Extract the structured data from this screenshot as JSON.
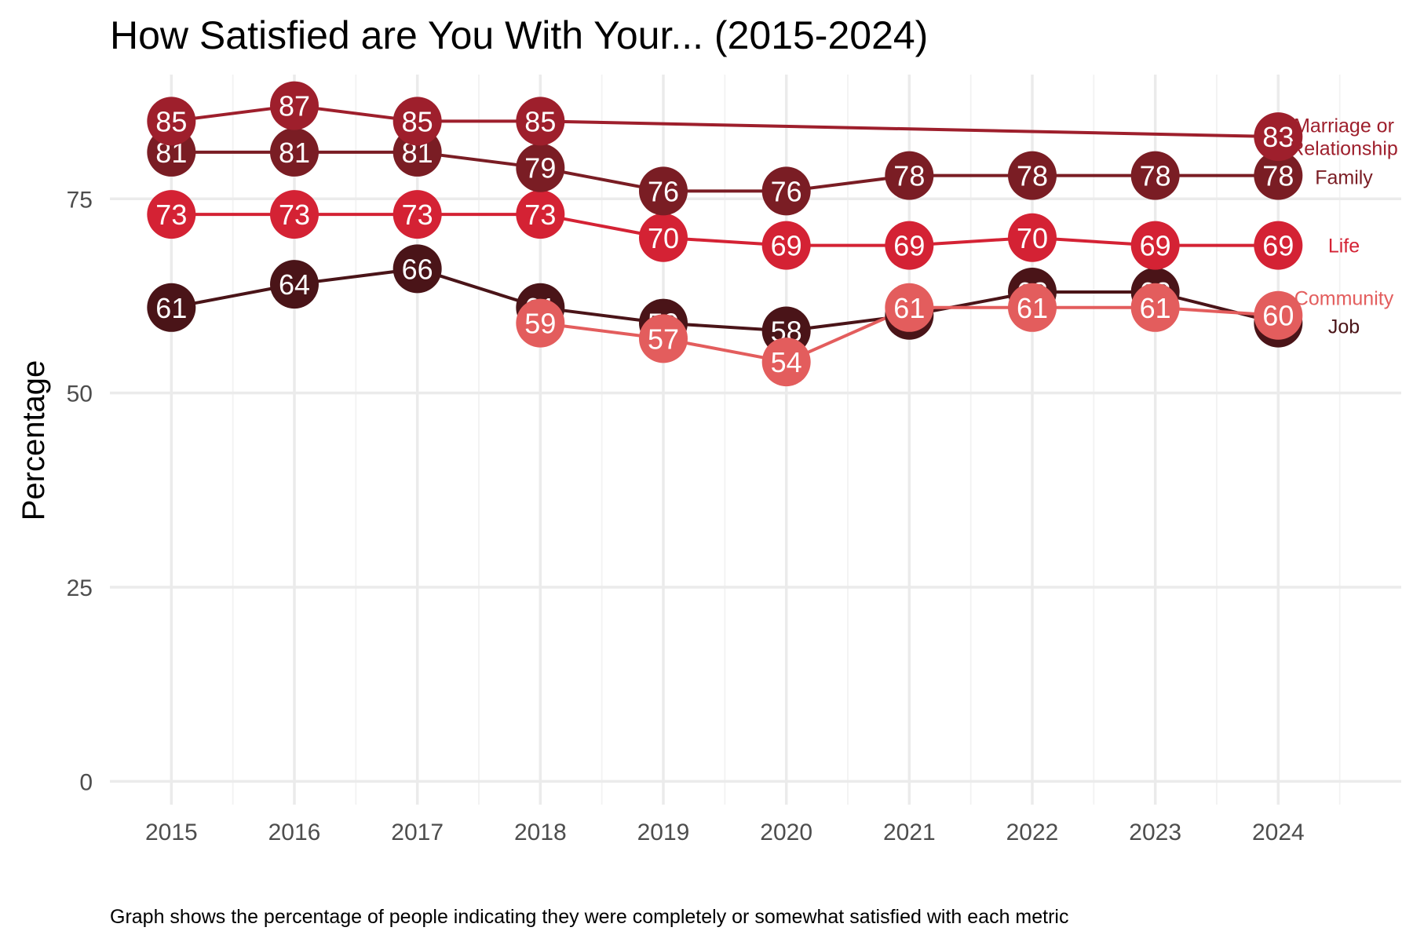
{
  "chart_data": {
    "type": "line",
    "title": "How Satisfied are You With Your... (2015-2024)",
    "xlabel": "",
    "ylabel": "Percentage",
    "caption": "Graph shows the percentage of people indicating they were completely or somewhat satisfied with each metric",
    "x": [
      2015,
      2016,
      2017,
      2018,
      2019,
      2020,
      2021,
      2022,
      2023,
      2024
    ],
    "xlim": [
      2014.5,
      2025.0
    ],
    "ylim": [
      -3,
      91
    ],
    "yticks": [
      0,
      25,
      50,
      75
    ],
    "grid": true,
    "legend": "direct labels at right end of lines",
    "series": [
      {
        "key": "job",
        "name_lines": [
          "Job"
        ],
        "color": "#4a1418",
        "points": [
          [
            2015,
            61
          ],
          [
            2016,
            64
          ],
          [
            2017,
            66
          ],
          [
            2018,
            61
          ],
          [
            2019,
            59
          ],
          [
            2020,
            58
          ],
          [
            2021,
            60
          ],
          [
            2022,
            63
          ],
          [
            2023,
            63
          ],
          [
            2024,
            59
          ]
        ]
      },
      {
        "key": "community",
        "name_lines": [
          "Community"
        ],
        "color": "#e35d5d",
        "points": [
          [
            2018,
            59
          ],
          [
            2019,
            57
          ],
          [
            2020,
            54
          ],
          [
            2021,
            61
          ],
          [
            2022,
            61
          ],
          [
            2023,
            61
          ],
          [
            2024,
            60
          ]
        ]
      },
      {
        "key": "life",
        "name_lines": [
          "Life"
        ],
        "color": "#d42234",
        "points": [
          [
            2015,
            73
          ],
          [
            2016,
            73
          ],
          [
            2017,
            73
          ],
          [
            2018,
            73
          ],
          [
            2019,
            70
          ],
          [
            2020,
            69
          ],
          [
            2021,
            69
          ],
          [
            2022,
            70
          ],
          [
            2023,
            69
          ],
          [
            2024,
            69
          ]
        ]
      },
      {
        "key": "family",
        "name_lines": [
          "Family"
        ],
        "color": "#7a1d24",
        "points": [
          [
            2015,
            81
          ],
          [
            2016,
            81
          ],
          [
            2017,
            81
          ],
          [
            2018,
            79
          ],
          [
            2019,
            76
          ],
          [
            2020,
            76
          ],
          [
            2021,
            78
          ],
          [
            2022,
            78
          ],
          [
            2023,
            78
          ],
          [
            2024,
            78
          ]
        ]
      },
      {
        "key": "marriage",
        "name_lines": [
          "Marriage or",
          "Relationship"
        ],
        "color": "#9e1f2c",
        "points": [
          [
            2015,
            85
          ],
          [
            2016,
            87
          ],
          [
            2017,
            85
          ],
          [
            2018,
            85
          ],
          [
            2024,
            83
          ]
        ]
      }
    ]
  }
}
